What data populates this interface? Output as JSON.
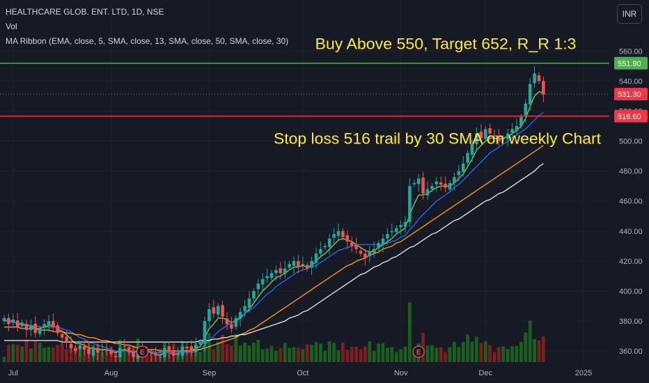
{
  "legend": {
    "title": "HEALTHCARE GLOB. ENT. LTD, 1D, NSE",
    "volume": "Vol",
    "ma": "MA Ribbon (EMA, close, 5, SMA, close, 13, SMA, close, 50, SMA, close, 30)"
  },
  "currency_button": "INR",
  "colors": {
    "background": "#161a25",
    "up": "#26a69a",
    "down": "#ef5350",
    "entry_line": "#4caf50",
    "stop_line": "#f23645",
    "annotation": "#ffeb3b",
    "ma5": "#8bc34a",
    "ma13": "#2962ff",
    "ma30": "#ff9800",
    "ma50": "#e0e0e0",
    "volume_up": "#1b5e20",
    "volume_down": "#7a1f1f"
  },
  "chart_data": {
    "type": "candlestick",
    "title": "HEALTHCARE GLOB. ENT. LTD, 1D, NSE",
    "ylim": [
      348,
      562
    ],
    "y_ticks": [
      360,
      380,
      400,
      420,
      440,
      460,
      480,
      500,
      520,
      540,
      560
    ],
    "x_tick_labels": [
      {
        "label": "Jul",
        "index": 2
      },
      {
        "label": "Aug",
        "index": 24
      },
      {
        "label": "Sep",
        "index": 46
      },
      {
        "label": "Oct",
        "index": 67
      },
      {
        "label": "Nov",
        "index": 89
      },
      {
        "label": "Dec",
        "index": 108
      },
      {
        "label": "2025",
        "index": 130
      }
    ],
    "price_labels": [
      {
        "value": 551.9,
        "text": "551.90",
        "kind": "entry"
      },
      {
        "value": 531.3,
        "text": "531.30",
        "kind": "last"
      },
      {
        "value": 516.6,
        "text": "516.60",
        "kind": "stop"
      }
    ],
    "horizontal_lines": [
      {
        "name": "entry",
        "value": 551.9
      },
      {
        "name": "stop",
        "value": 516.6
      }
    ],
    "annotations": [
      {
        "text": "Buy Above 550, Target 652, R_R 1:3",
        "near_value": 565
      },
      {
        "text": "Stop loss 516 trail by 30 SMA on weekly Chart",
        "near_value": 502
      }
    ],
    "earnings_markers": [
      31,
      93
    ],
    "closes": [
      382,
      378,
      381,
      376,
      379,
      374,
      377,
      372,
      375,
      378,
      380,
      376,
      372,
      369,
      366,
      362,
      360,
      364,
      361,
      358,
      362,
      359,
      361,
      360,
      358,
      356,
      362,
      363,
      359,
      356,
      361,
      360,
      359,
      358,
      357,
      356,
      362,
      360,
      357,
      358,
      363,
      362,
      360,
      364,
      366,
      380,
      388,
      385,
      390,
      383,
      378,
      375,
      382,
      386,
      390,
      395,
      400,
      405,
      408,
      410,
      412,
      414,
      412,
      415,
      418,
      420,
      416,
      418,
      415,
      420,
      425,
      428,
      430,
      435,
      438,
      440,
      436,
      433,
      430,
      428,
      425,
      422,
      426,
      428,
      432,
      435,
      438,
      440,
      442,
      444,
      446,
      470,
      472,
      475,
      465,
      468,
      470,
      473,
      471,
      469,
      472,
      476,
      480,
      485,
      492,
      498,
      505,
      502,
      508,
      505,
      503,
      500,
      502,
      505,
      508,
      510,
      516,
      525,
      538,
      545,
      540,
      531
    ],
    "ma": {
      "EMA 5": [
        381,
        380,
        380,
        378,
        378,
        377,
        377,
        375,
        375,
        376,
        377,
        377,
        375,
        373,
        371,
        368,
        365,
        365,
        364,
        362,
        362,
        361,
        361,
        361,
        360,
        359,
        360,
        361,
        360,
        359,
        360,
        360,
        360,
        359,
        358,
        357,
        359,
        359,
        358,
        358,
        360,
        360,
        360,
        362,
        363,
        369,
        375,
        378,
        382,
        382,
        381,
        379,
        380,
        382,
        385,
        388,
        392,
        396,
        400,
        403,
        406,
        409,
        410,
        412,
        414,
        416,
        416,
        417,
        416,
        417,
        420,
        423,
        425,
        428,
        431,
        434,
        435,
        434,
        433,
        431,
        429,
        427,
        426,
        427,
        429,
        431,
        433,
        435,
        438,
        440,
        442,
        451,
        458,
        464,
        464,
        465,
        467,
        469,
        470,
        470,
        470,
        472,
        475,
        478,
        483,
        488,
        494,
        497,
        500,
        502,
        502,
        501,
        502,
        503,
        505,
        507,
        510,
        515,
        523,
        530,
        533,
        532
      ],
      "SMA 13": [
        380,
        380,
        379,
        379,
        378,
        378,
        377,
        377,
        376,
        376,
        376,
        376,
        376,
        375,
        374,
        373,
        371,
        369,
        368,
        366,
        365,
        364,
        363,
        362,
        361,
        360,
        360,
        360,
        360,
        360,
        360,
        360,
        360,
        360,
        359,
        359,
        359,
        359,
        359,
        359,
        359,
        359,
        359,
        360,
        361,
        364,
        367,
        370,
        373,
        375,
        377,
        379,
        381,
        383,
        385,
        387,
        389,
        392,
        395,
        398,
        400,
        403,
        405,
        407,
        409,
        411,
        413,
        414,
        415,
        416,
        417,
        419,
        421,
        423,
        425,
        427,
        428,
        429,
        430,
        431,
        431,
        431,
        431,
        431,
        431,
        431,
        432,
        433,
        434,
        436,
        437,
        441,
        444,
        448,
        451,
        454,
        457,
        460,
        462,
        464,
        466,
        469,
        471,
        474,
        477,
        480,
        483,
        486,
        489,
        492,
        494,
        496,
        498,
        500,
        502,
        504,
        506,
        508,
        511,
        514,
        517,
        519
      ],
      "SMA 30": [
        376,
        376,
        376,
        376,
        375,
        375,
        375,
        375,
        374,
        374,
        374,
        373,
        373,
        373,
        372,
        372,
        371,
        371,
        370,
        369,
        369,
        368,
        367,
        367,
        366,
        365,
        365,
        364,
        364,
        363,
        362,
        362,
        361,
        361,
        361,
        360,
        360,
        360,
        360,
        360,
        360,
        360,
        360,
        361,
        361,
        362,
        363,
        364,
        365,
        366,
        367,
        368,
        369,
        371,
        372,
        374,
        375,
        377,
        379,
        381,
        383,
        385,
        387,
        389,
        391,
        393,
        395,
        397,
        399,
        401,
        403,
        405,
        407,
        409,
        411,
        413,
        415,
        417,
        418,
        420,
        421,
        422,
        424,
        425,
        426,
        428,
        429,
        430,
        432,
        433,
        435,
        437,
        439,
        441,
        443,
        445,
        447,
        449,
        451,
        453,
        455,
        457,
        459,
        461,
        463,
        465,
        467,
        469,
        471,
        473,
        475,
        477,
        479,
        481,
        483,
        485,
        487,
        489,
        491,
        493,
        495,
        497
      ],
      "SMA 50": [
        367,
        367,
        367,
        367,
        367,
        367,
        367,
        367,
        367,
        367,
        367,
        367,
        367,
        366,
        366,
        366,
        366,
        366,
        366,
        366,
        366,
        366,
        366,
        366,
        366,
        366,
        366,
        366,
        366,
        366,
        366,
        366,
        366,
        366,
        366,
        366,
        366,
        366,
        366,
        366,
        366,
        366,
        366,
        366,
        367,
        367,
        367,
        368,
        368,
        369,
        369,
        370,
        370,
        371,
        371,
        372,
        373,
        374,
        375,
        376,
        377,
        378,
        379,
        380,
        382,
        383,
        384,
        386,
        387,
        389,
        391,
        393,
        395,
        397,
        399,
        401,
        403,
        405,
        407,
        409,
        411,
        412,
        414,
        416,
        417,
        419,
        420,
        422,
        423,
        425,
        427,
        429,
        430,
        432,
        434,
        436,
        438,
        439,
        441,
        443,
        445,
        447,
        448,
        450,
        452,
        454,
        456,
        458,
        460,
        461,
        463,
        465,
        466,
        468,
        470,
        472,
        474,
        476,
        478,
        480,
        483,
        485
      ]
    }
  }
}
